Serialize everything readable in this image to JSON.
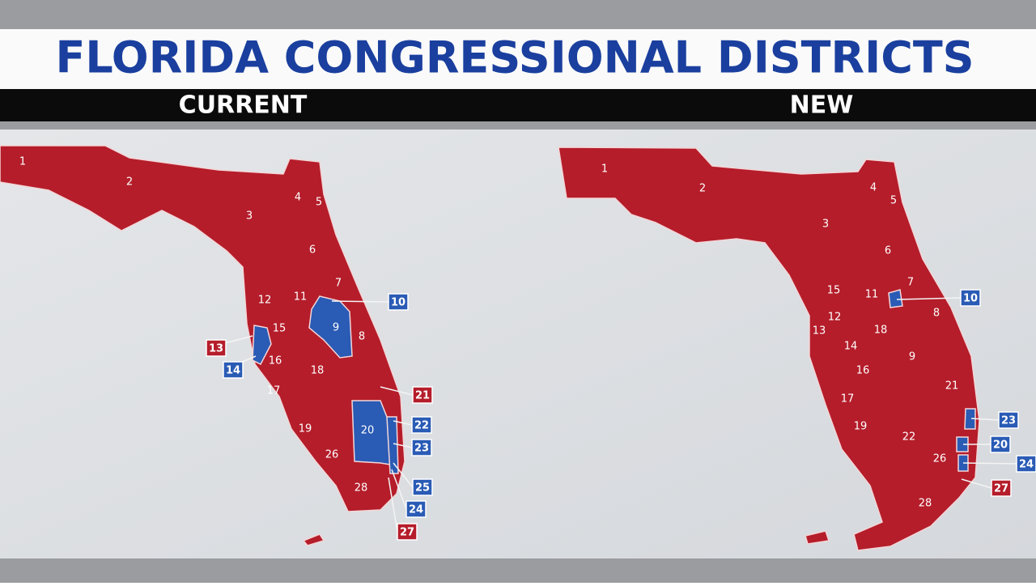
{
  "title": "FLORIDA CONGRESSIONAL DISTRICTS",
  "maps": [
    {
      "heading": "CURRENT",
      "districts": [
        {
          "label": "1"
        },
        {
          "label": "2"
        },
        {
          "label": "3"
        },
        {
          "label": "4"
        },
        {
          "label": "5"
        },
        {
          "label": "6"
        },
        {
          "label": "7"
        },
        {
          "label": "8"
        },
        {
          "label": "9"
        },
        {
          "label": "10",
          "color": "#2a5bb5"
        },
        {
          "label": "11"
        },
        {
          "label": "12"
        },
        {
          "label": "13",
          "color": "#b51d2a"
        },
        {
          "label": "14",
          "color": "#2a5bb5"
        },
        {
          "label": "15"
        },
        {
          "label": "16"
        },
        {
          "label": "17"
        },
        {
          "label": "18"
        },
        {
          "label": "19"
        },
        {
          "label": "20"
        },
        {
          "label": "21",
          "color": "#b51d2a"
        },
        {
          "label": "22",
          "color": "#2a5bb5"
        },
        {
          "label": "23",
          "color": "#2a5bb5"
        },
        {
          "label": "24",
          "color": "#2a5bb5"
        },
        {
          "label": "25",
          "color": "#2a5bb5"
        },
        {
          "label": "26"
        },
        {
          "label": "27",
          "color": "#b51d2a"
        },
        {
          "label": "28"
        }
      ]
    },
    {
      "heading": "NEW",
      "districts": [
        {
          "label": "1"
        },
        {
          "label": "2"
        },
        {
          "label": "3"
        },
        {
          "label": "4"
        },
        {
          "label": "5"
        },
        {
          "label": "6"
        },
        {
          "label": "7"
        },
        {
          "label": "8"
        },
        {
          "label": "9"
        },
        {
          "label": "10",
          "color": "#2a5bb5"
        },
        {
          "label": "11"
        },
        {
          "label": "12"
        },
        {
          "label": "13"
        },
        {
          "label": "14"
        },
        {
          "label": "15"
        },
        {
          "label": "16"
        },
        {
          "label": "17"
        },
        {
          "label": "18"
        },
        {
          "label": "19"
        },
        {
          "label": "20",
          "color": "#2a5bb5"
        },
        {
          "label": "21"
        },
        {
          "label": "22"
        },
        {
          "label": "23",
          "color": "#2a5bb5"
        },
        {
          "label": "24",
          "color": "#2a5bb5"
        },
        {
          "label": "26"
        },
        {
          "label": "27",
          "color": "#b51d2a"
        },
        {
          "label": "28"
        }
      ]
    }
  ]
}
